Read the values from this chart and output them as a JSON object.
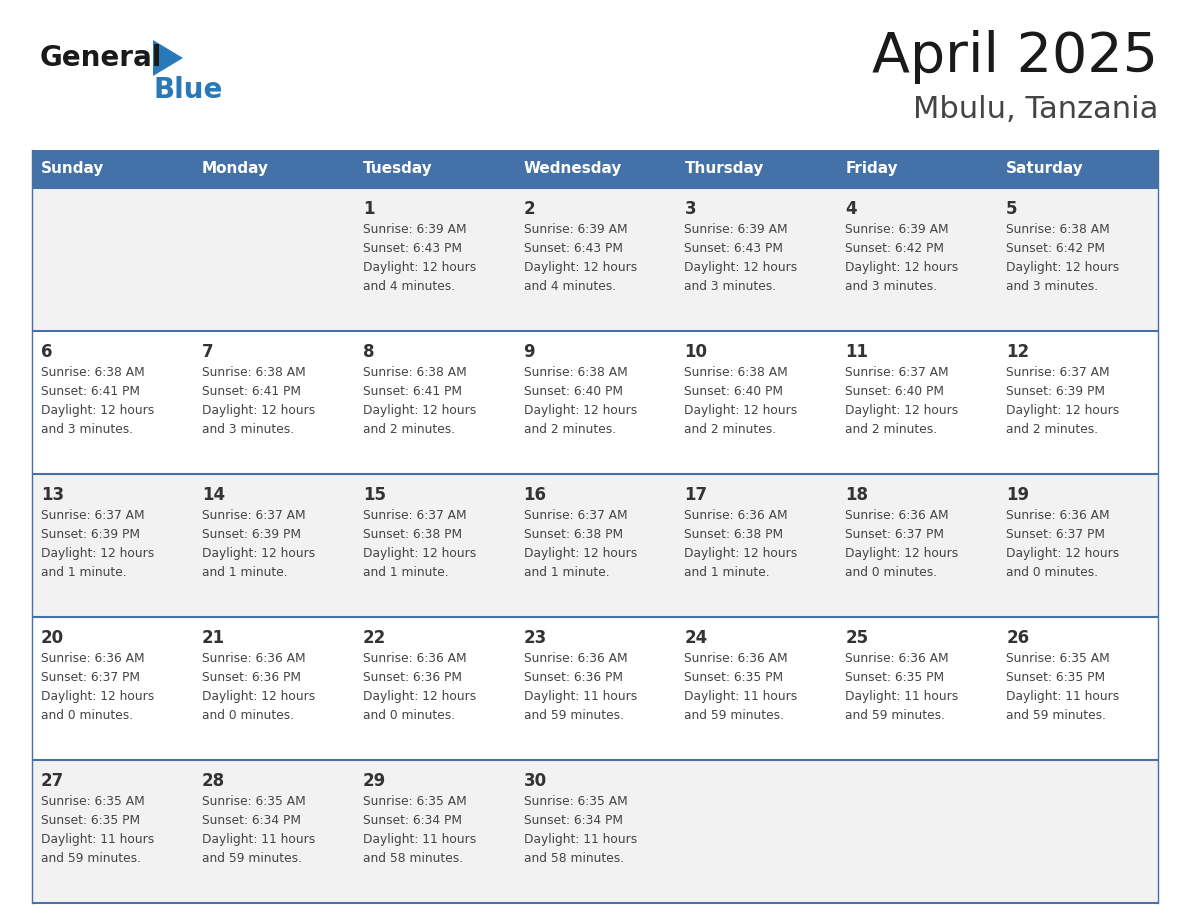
{
  "title": "April 2025",
  "subtitle": "Mbulu, Tanzania",
  "header_bg": "#4472A8",
  "header_text_color": "#FFFFFF",
  "days_of_week": [
    "Sunday",
    "Monday",
    "Tuesday",
    "Wednesday",
    "Thursday",
    "Friday",
    "Saturday"
  ],
  "row_bg_odd": "#F2F2F2",
  "row_bg_even": "#FFFFFF",
  "cell_border_color": "#4472A8",
  "day_num_color": "#333333",
  "info_text_color": "#444444",
  "title_color": "#1a1a1a",
  "subtitle_color": "#444444",
  "logo_general_color": "#1a1a1a",
  "logo_blue_color": "#2979B8",
  "calendar_data": [
    [
      {
        "day": "",
        "sunrise": "",
        "sunset": "",
        "daylight": ""
      },
      {
        "day": "",
        "sunrise": "",
        "sunset": "",
        "daylight": ""
      },
      {
        "day": "1",
        "sunrise": "Sunrise: 6:39 AM",
        "sunset": "Sunset: 6:43 PM",
        "daylight": "Daylight: 12 hours\nand 4 minutes."
      },
      {
        "day": "2",
        "sunrise": "Sunrise: 6:39 AM",
        "sunset": "Sunset: 6:43 PM",
        "daylight": "Daylight: 12 hours\nand 4 minutes."
      },
      {
        "day": "3",
        "sunrise": "Sunrise: 6:39 AM",
        "sunset": "Sunset: 6:43 PM",
        "daylight": "Daylight: 12 hours\nand 3 minutes."
      },
      {
        "day": "4",
        "sunrise": "Sunrise: 6:39 AM",
        "sunset": "Sunset: 6:42 PM",
        "daylight": "Daylight: 12 hours\nand 3 minutes."
      },
      {
        "day": "5",
        "sunrise": "Sunrise: 6:38 AM",
        "sunset": "Sunset: 6:42 PM",
        "daylight": "Daylight: 12 hours\nand 3 minutes."
      }
    ],
    [
      {
        "day": "6",
        "sunrise": "Sunrise: 6:38 AM",
        "sunset": "Sunset: 6:41 PM",
        "daylight": "Daylight: 12 hours\nand 3 minutes."
      },
      {
        "day": "7",
        "sunrise": "Sunrise: 6:38 AM",
        "sunset": "Sunset: 6:41 PM",
        "daylight": "Daylight: 12 hours\nand 3 minutes."
      },
      {
        "day": "8",
        "sunrise": "Sunrise: 6:38 AM",
        "sunset": "Sunset: 6:41 PM",
        "daylight": "Daylight: 12 hours\nand 2 minutes."
      },
      {
        "day": "9",
        "sunrise": "Sunrise: 6:38 AM",
        "sunset": "Sunset: 6:40 PM",
        "daylight": "Daylight: 12 hours\nand 2 minutes."
      },
      {
        "day": "10",
        "sunrise": "Sunrise: 6:38 AM",
        "sunset": "Sunset: 6:40 PM",
        "daylight": "Daylight: 12 hours\nand 2 minutes."
      },
      {
        "day": "11",
        "sunrise": "Sunrise: 6:37 AM",
        "sunset": "Sunset: 6:40 PM",
        "daylight": "Daylight: 12 hours\nand 2 minutes."
      },
      {
        "day": "12",
        "sunrise": "Sunrise: 6:37 AM",
        "sunset": "Sunset: 6:39 PM",
        "daylight": "Daylight: 12 hours\nand 2 minutes."
      }
    ],
    [
      {
        "day": "13",
        "sunrise": "Sunrise: 6:37 AM",
        "sunset": "Sunset: 6:39 PM",
        "daylight": "Daylight: 12 hours\nand 1 minute."
      },
      {
        "day": "14",
        "sunrise": "Sunrise: 6:37 AM",
        "sunset": "Sunset: 6:39 PM",
        "daylight": "Daylight: 12 hours\nand 1 minute."
      },
      {
        "day": "15",
        "sunrise": "Sunrise: 6:37 AM",
        "sunset": "Sunset: 6:38 PM",
        "daylight": "Daylight: 12 hours\nand 1 minute."
      },
      {
        "day": "16",
        "sunrise": "Sunrise: 6:37 AM",
        "sunset": "Sunset: 6:38 PM",
        "daylight": "Daylight: 12 hours\nand 1 minute."
      },
      {
        "day": "17",
        "sunrise": "Sunrise: 6:36 AM",
        "sunset": "Sunset: 6:38 PM",
        "daylight": "Daylight: 12 hours\nand 1 minute."
      },
      {
        "day": "18",
        "sunrise": "Sunrise: 6:36 AM",
        "sunset": "Sunset: 6:37 PM",
        "daylight": "Daylight: 12 hours\nand 0 minutes."
      },
      {
        "day": "19",
        "sunrise": "Sunrise: 6:36 AM",
        "sunset": "Sunset: 6:37 PM",
        "daylight": "Daylight: 12 hours\nand 0 minutes."
      }
    ],
    [
      {
        "day": "20",
        "sunrise": "Sunrise: 6:36 AM",
        "sunset": "Sunset: 6:37 PM",
        "daylight": "Daylight: 12 hours\nand 0 minutes."
      },
      {
        "day": "21",
        "sunrise": "Sunrise: 6:36 AM",
        "sunset": "Sunset: 6:36 PM",
        "daylight": "Daylight: 12 hours\nand 0 minutes."
      },
      {
        "day": "22",
        "sunrise": "Sunrise: 6:36 AM",
        "sunset": "Sunset: 6:36 PM",
        "daylight": "Daylight: 12 hours\nand 0 minutes."
      },
      {
        "day": "23",
        "sunrise": "Sunrise: 6:36 AM",
        "sunset": "Sunset: 6:36 PM",
        "daylight": "Daylight: 11 hours\nand 59 minutes."
      },
      {
        "day": "24",
        "sunrise": "Sunrise: 6:36 AM",
        "sunset": "Sunset: 6:35 PM",
        "daylight": "Daylight: 11 hours\nand 59 minutes."
      },
      {
        "day": "25",
        "sunrise": "Sunrise: 6:36 AM",
        "sunset": "Sunset: 6:35 PM",
        "daylight": "Daylight: 11 hours\nand 59 minutes."
      },
      {
        "day": "26",
        "sunrise": "Sunrise: 6:35 AM",
        "sunset": "Sunset: 6:35 PM",
        "daylight": "Daylight: 11 hours\nand 59 minutes."
      }
    ],
    [
      {
        "day": "27",
        "sunrise": "Sunrise: 6:35 AM",
        "sunset": "Sunset: 6:35 PM",
        "daylight": "Daylight: 11 hours\nand 59 minutes."
      },
      {
        "day": "28",
        "sunrise": "Sunrise: 6:35 AM",
        "sunset": "Sunset: 6:34 PM",
        "daylight": "Daylight: 11 hours\nand 59 minutes."
      },
      {
        "day": "29",
        "sunrise": "Sunrise: 6:35 AM",
        "sunset": "Sunset: 6:34 PM",
        "daylight": "Daylight: 11 hours\nand 58 minutes."
      },
      {
        "day": "30",
        "sunrise": "Sunrise: 6:35 AM",
        "sunset": "Sunset: 6:34 PM",
        "daylight": "Daylight: 11 hours\nand 58 minutes."
      },
      {
        "day": "",
        "sunrise": "",
        "sunset": "",
        "daylight": ""
      },
      {
        "day": "",
        "sunrise": "",
        "sunset": "",
        "daylight": ""
      },
      {
        "day": "",
        "sunrise": "",
        "sunset": "",
        "daylight": ""
      }
    ]
  ]
}
